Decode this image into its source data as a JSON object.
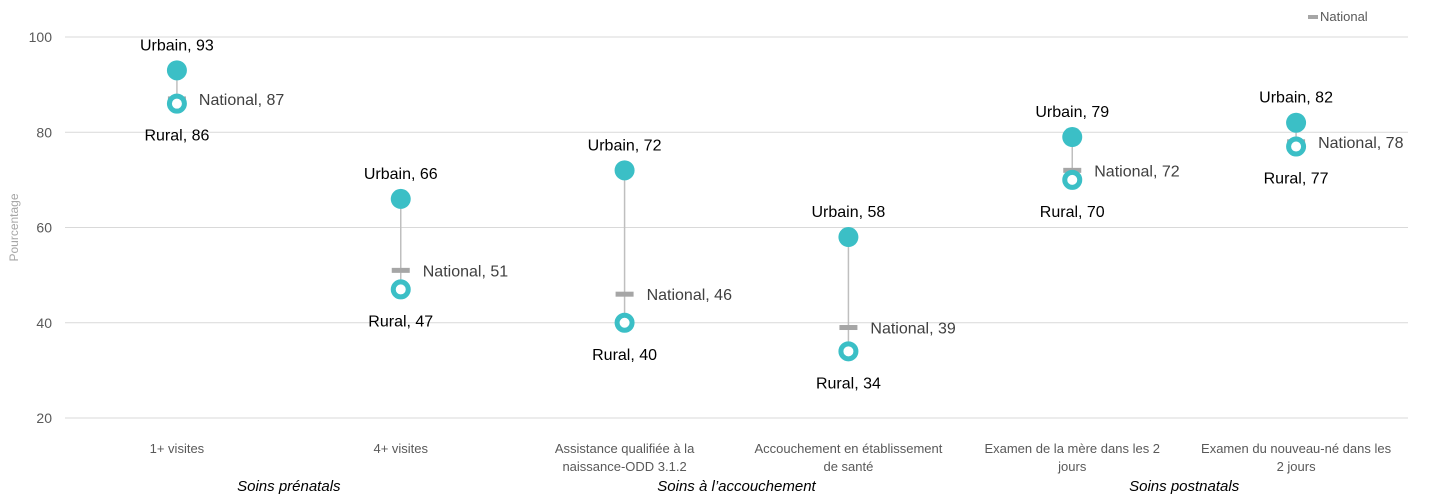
{
  "chart_data": {
    "type": "scatter",
    "ylabel": "Pourcentage",
    "ylim": [
      20,
      100
    ],
    "yticks": [
      20,
      40,
      60,
      80,
      100
    ],
    "grid": true,
    "legend": {
      "position": "top-right",
      "entries": [
        "National"
      ]
    },
    "categories": [
      [
        "1+ visites"
      ],
      [
        "4+ visites"
      ],
      [
        "Assistance qualifiée à la",
        "naissance-ODD 3.1.2"
      ],
      [
        "Accouchement en établissement",
        "de santé"
      ],
      [
        "Examen de la mère dans les 2",
        "jours"
      ],
      [
        "Examen du nouveau-né dans les",
        "2 jours"
      ]
    ],
    "groups": [
      {
        "label": "Soins prénatals",
        "from": 0,
        "to": 1
      },
      {
        "label": "Soins à l’accouchement",
        "from": 2,
        "to": 3
      },
      {
        "label": "Soins postnatals",
        "from": 4,
        "to": 5
      }
    ],
    "series": [
      {
        "name": "Urbain",
        "values": [
          93,
          66,
          72,
          58,
          79,
          82
        ],
        "labels": [
          "Urbain, 93",
          "Urbain, 66",
          "Urbain, 72",
          "Urbain, 58",
          "Urbain, 79",
          "Urbain, 82"
        ]
      },
      {
        "name": "National",
        "values": [
          87,
          51,
          46,
          39,
          72,
          78
        ],
        "labels": [
          "National, 87",
          "National, 51",
          "National, 46",
          "National, 39",
          "National, 72",
          "National, 78"
        ]
      },
      {
        "name": "Rural",
        "values": [
          86,
          47,
          40,
          34,
          70,
          77
        ],
        "labels": [
          "Rural, 86",
          "Rural, 47",
          "Rural, 40",
          "Rural, 34",
          "Rural, 70",
          "Rural, 77"
        ]
      }
    ],
    "colors": {
      "urbain": "#3bbfc6",
      "rural": "#3bbfc6",
      "national": "#a6a6a6",
      "grid": "#d9d9d9",
      "connector": "#bfbfbf"
    }
  }
}
